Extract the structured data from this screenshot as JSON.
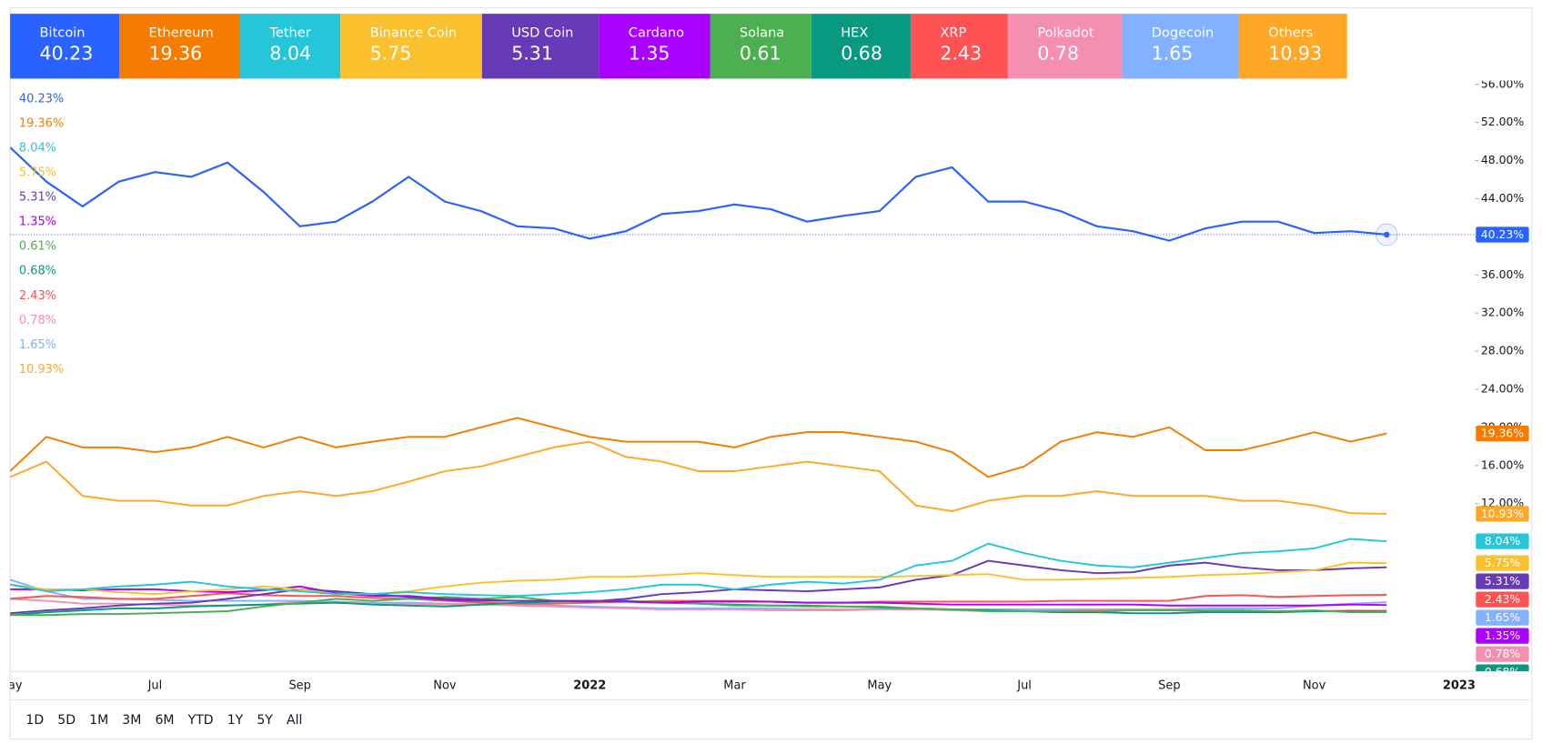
{
  "chart_data": {
    "type": "line",
    "categories": [
      "May",
      null,
      null,
      null,
      "Jul",
      null,
      null,
      null,
      "Sep",
      null,
      null,
      null,
      "Nov",
      null,
      null,
      null,
      "2022",
      null,
      null,
      null,
      "Mar",
      null,
      null,
      null,
      "May",
      null,
      null,
      null,
      "Jul",
      null,
      null,
      null,
      "Sep",
      null,
      null,
      null,
      "Nov",
      null,
      null,
      null,
      "2023"
    ],
    "ylim": [
      -5.6,
      56.4
    ],
    "yticks": [
      {
        "value": 12,
        "label": "12.00%"
      },
      {
        "value": 16,
        "label": "16.00%"
      },
      {
        "value": 20,
        "label": "20.00%"
      },
      {
        "value": 24,
        "label": "24.00%"
      },
      {
        "value": 28,
        "label": "28.00%"
      },
      {
        "value": 32,
        "label": "32.00%"
      },
      {
        "value": 36,
        "label": "36.00%"
      },
      {
        "value": 40,
        "label": "40.00%"
      },
      {
        "value": 44,
        "label": "44.00%"
      },
      {
        "value": 48,
        "label": "48.00%"
      },
      {
        "value": 52,
        "label": "52.00%"
      },
      {
        "value": 56,
        "label": "56.00%"
      }
    ],
    "series": [
      {
        "name": "Bitcoin",
        "color": "#2962ff",
        "current": 40.23,
        "current_label": "40.23%",
        "values": [
          49.4,
          45.8,
          43.2,
          45.8,
          46.8,
          46.3,
          47.8,
          44.7,
          41.1,
          41.6,
          43.7,
          46.3,
          43.7,
          42.7,
          41.1,
          40.9,
          39.8,
          40.6,
          42.4,
          42.7,
          43.4,
          42.9,
          41.6,
          42.2,
          42.7,
          46.3,
          47.3,
          43.7,
          43.7,
          42.7,
          41.1,
          40.6,
          39.6,
          40.9,
          41.6,
          41.6,
          40.4,
          40.6,
          40.23,
          null,
          null
        ]
      },
      {
        "name": "Ethereum",
        "color": "#f57c00",
        "current": 19.36,
        "current_label": "19.36%",
        "values": [
          15.4,
          19.0,
          17.9,
          17.9,
          17.4,
          17.9,
          19.0,
          17.9,
          19.0,
          17.9,
          18.5,
          19.0,
          19.0,
          20.0,
          21.0,
          20.0,
          19.0,
          18.5,
          18.5,
          18.5,
          17.9,
          19.0,
          19.5,
          19.5,
          19.0,
          18.5,
          17.4,
          14.8,
          15.9,
          18.5,
          19.5,
          19.0,
          20.0,
          17.6,
          17.6,
          18.5,
          19.5,
          18.5,
          19.36,
          null,
          null
        ]
      },
      {
        "name": "Tether",
        "color": "#26c6da",
        "current": 8.04,
        "current_label": "8.04%",
        "values": [
          3.5,
          2.8,
          3.0,
          3.3,
          3.5,
          3.8,
          3.3,
          3.0,
          2.8,
          2.5,
          2.5,
          2.7,
          2.5,
          2.4,
          2.3,
          2.5,
          2.7,
          3.0,
          3.5,
          3.5,
          3.0,
          3.5,
          3.8,
          3.6,
          4.0,
          5.5,
          6.0,
          7.8,
          6.8,
          6.0,
          5.5,
          5.3,
          5.8,
          6.3,
          6.8,
          7.0,
          7.3,
          8.3,
          8.04,
          null,
          null
        ]
      },
      {
        "name": "Binance Coin",
        "color": "#fbc02d",
        "current": 5.75,
        "current_label": "5.75%",
        "values": [
          3.5,
          3.0,
          3.0,
          2.7,
          2.5,
          2.8,
          3.0,
          3.3,
          3.0,
          2.5,
          2.5,
          2.8,
          3.3,
          3.7,
          3.9,
          4.0,
          4.3,
          4.3,
          4.5,
          4.7,
          4.5,
          4.3,
          4.3,
          4.3,
          4.3,
          4.4,
          4.5,
          4.6,
          4.0,
          4.0,
          4.1,
          4.2,
          4.3,
          4.5,
          4.6,
          4.8,
          5.0,
          5.8,
          5.75,
          null,
          null
        ]
      },
      {
        "name": "USD Coin",
        "color": "#673ab7",
        "current": 5.31,
        "current_label": "5.31%",
        "values": [
          0.5,
          0.8,
          1.0,
          1.3,
          1.5,
          1.6,
          2.0,
          2.5,
          3.0,
          2.8,
          2.5,
          2.2,
          1.9,
          1.8,
          1.8,
          1.8,
          1.7,
          2.0,
          2.5,
          2.7,
          3.0,
          2.9,
          2.8,
          3.0,
          3.2,
          4.0,
          4.5,
          6.0,
          5.5,
          5.0,
          4.7,
          4.8,
          5.5,
          5.8,
          5.3,
          5.0,
          5.0,
          5.2,
          5.31,
          null,
          null
        ]
      },
      {
        "name": "Cardano",
        "color": "#aa00ff",
        "current": 1.35,
        "current_label": "1.35%",
        "values": [
          3.0,
          3.0,
          2.9,
          3.0,
          3.0,
          2.8,
          2.7,
          2.9,
          3.3,
          2.6,
          2.3,
          2.3,
          2.0,
          1.9,
          1.8,
          1.8,
          1.8,
          1.7,
          1.6,
          1.7,
          1.7,
          1.7,
          1.6,
          1.6,
          1.6,
          1.5,
          1.4,
          1.4,
          1.4,
          1.4,
          1.4,
          1.4,
          1.3,
          1.3,
          1.3,
          1.3,
          1.3,
          1.4,
          1.35,
          null,
          null
        ]
      },
      {
        "name": "Solana",
        "color": "#4caf50",
        "current": 0.61,
        "current_label": "0.61%",
        "values": [
          0.3,
          0.3,
          0.4,
          0.4,
          0.5,
          0.6,
          0.7,
          1.2,
          1.6,
          2.0,
          1.8,
          2.0,
          2.2,
          2.0,
          2.2,
          1.8,
          1.8,
          1.7,
          1.7,
          1.5,
          1.3,
          1.3,
          1.2,
          1.2,
          1.2,
          1.0,
          0.9,
          0.7,
          0.7,
          0.7,
          0.7,
          0.8,
          0.8,
          0.8,
          0.8,
          0.7,
          0.8,
          0.6,
          0.61,
          null,
          null
        ]
      },
      {
        "name": "HEX",
        "color": "#089981",
        "current": 0.68,
        "current_label": "0.68%",
        "values": [
          0.3,
          0.6,
          0.8,
          1.0,
          1.0,
          1.2,
          1.3,
          1.4,
          1.5,
          1.6,
          1.4,
          1.3,
          1.2,
          1.4,
          1.6,
          1.7,
          1.8,
          1.8,
          1.6,
          1.5,
          1.4,
          1.3,
          1.3,
          1.2,
          1.1,
          1.0,
          0.9,
          0.8,
          0.7,
          0.6,
          0.6,
          0.5,
          0.5,
          0.6,
          0.6,
          0.6,
          0.7,
          0.7,
          0.68,
          null,
          null
        ]
      },
      {
        "name": "XRP",
        "color": "#ff5252",
        "current": 2.43,
        "current_label": "2.43%",
        "values": [
          2.0,
          2.3,
          2.2,
          2.0,
          2.0,
          2.3,
          2.6,
          2.4,
          2.3,
          2.3,
          2.1,
          2.0,
          1.8,
          1.6,
          1.5,
          1.5,
          1.6,
          1.7,
          1.8,
          1.8,
          1.8,
          1.7,
          1.6,
          1.6,
          1.7,
          1.7,
          1.7,
          1.7,
          1.7,
          1.8,
          1.8,
          1.8,
          1.8,
          2.3,
          2.4,
          2.2,
          2.3,
          2.4,
          2.43,
          null,
          null
        ]
      },
      {
        "name": "Polkadot",
        "color": "#f48fb1",
        "current": 0.78,
        "current_label": "0.78%",
        "values": [
          2.0,
          1.8,
          1.5,
          1.5,
          1.4,
          1.3,
          1.3,
          1.4,
          1.7,
          1.6,
          1.5,
          1.5,
          1.4,
          1.4,
          1.3,
          1.2,
          1.1,
          1.0,
          0.9,
          0.9,
          0.9,
          0.8,
          0.8,
          0.8,
          0.9,
          0.9,
          0.8,
          0.7,
          0.7,
          0.7,
          0.8,
          0.8,
          0.8,
          0.7,
          0.7,
          0.7,
          0.7,
          0.8,
          0.78,
          null,
          null
        ]
      },
      {
        "name": "Dogecoin",
        "color": "#82b1ff",
        "current": 1.65,
        "current_label": "1.65%",
        "values": [
          4.0,
          2.8,
          2.0,
          2.0,
          1.9,
          1.8,
          1.8,
          1.8,
          1.8,
          1.7,
          1.6,
          1.6,
          1.5,
          1.4,
          1.4,
          1.3,
          1.2,
          1.1,
          1.0,
          1.0,
          1.0,
          1.0,
          0.9,
          0.9,
          0.9,
          0.9,
          0.9,
          0.9,
          0.9,
          0.9,
          0.9,
          0.9,
          0.9,
          1.0,
          1.0,
          1.0,
          1.3,
          1.5,
          1.65,
          null,
          null
        ]
      },
      {
        "name": "Others",
        "color": "#ffa726",
        "current": 10.93,
        "current_label": "10.93%",
        "values": [
          14.8,
          16.4,
          12.8,
          12.3,
          12.3,
          11.8,
          11.8,
          12.8,
          13.3,
          12.8,
          13.3,
          14.3,
          15.4,
          15.9,
          16.9,
          17.9,
          18.5,
          16.9,
          16.4,
          15.4,
          15.4,
          15.9,
          16.4,
          15.9,
          15.4,
          11.8,
          11.2,
          12.3,
          12.8,
          12.8,
          13.3,
          12.8,
          12.8,
          12.8,
          12.3,
          12.3,
          11.8,
          11.0,
          10.93,
          null,
          null
        ]
      }
    ],
    "ranges": [
      "1D",
      "5D",
      "1M",
      "3M",
      "6M",
      "YTD",
      "1Y",
      "5Y",
      "All"
    ]
  }
}
